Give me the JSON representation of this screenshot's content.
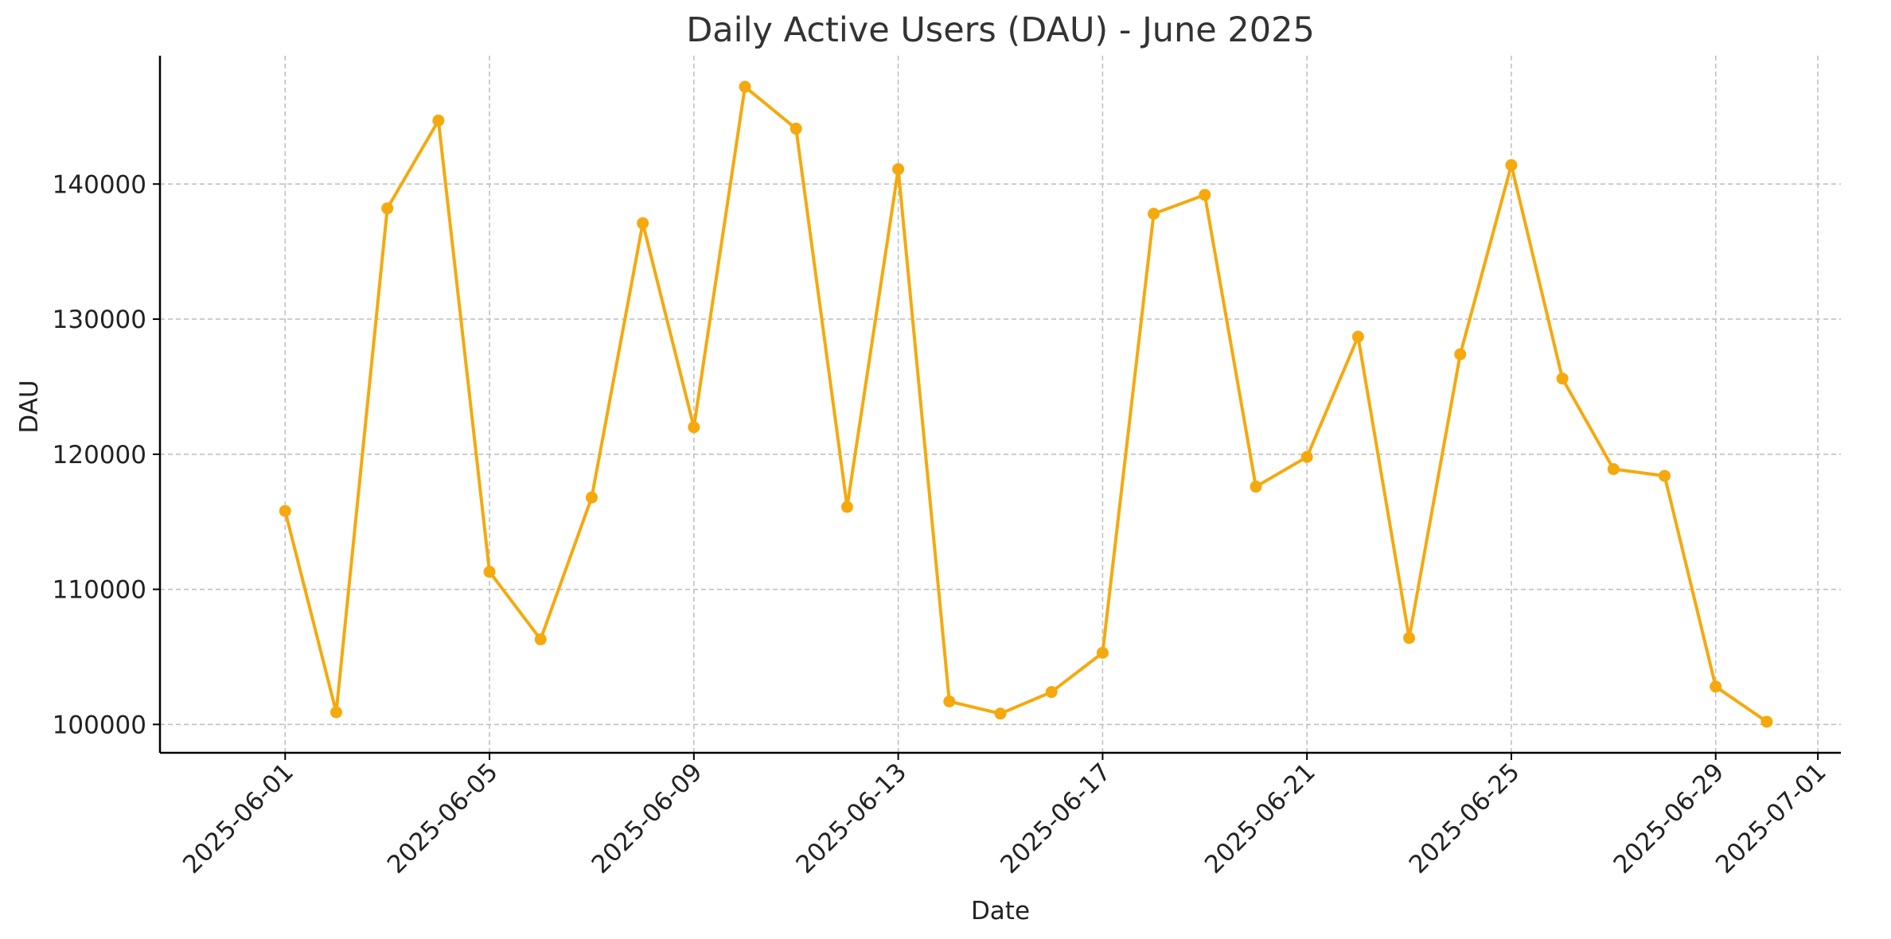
{
  "chart_data": {
    "type": "line",
    "title": "Daily Active Users (DAU) - June 2025",
    "xlabel": "Date",
    "ylabel": "DAU",
    "x": [
      "2025-06-01",
      "2025-06-02",
      "2025-06-03",
      "2025-06-04",
      "2025-06-05",
      "2025-06-06",
      "2025-06-07",
      "2025-06-08",
      "2025-06-09",
      "2025-06-10",
      "2025-06-11",
      "2025-06-12",
      "2025-06-13",
      "2025-06-14",
      "2025-06-15",
      "2025-06-16",
      "2025-06-17",
      "2025-06-18",
      "2025-06-19",
      "2025-06-20",
      "2025-06-21",
      "2025-06-22",
      "2025-06-23",
      "2025-06-24",
      "2025-06-25",
      "2025-06-26",
      "2025-06-27",
      "2025-06-28",
      "2025-06-29",
      "2025-06-30"
    ],
    "series": [
      {
        "values": [
          115800,
          100900,
          138200,
          144700,
          111300,
          106300,
          116800,
          137100,
          122000,
          147200,
          144100,
          116100,
          141100,
          101700,
          100800,
          102400,
          105300,
          137800,
          139200,
          117600,
          119800,
          128700,
          106400,
          127400,
          141400,
          125600,
          118900,
          118400,
          102800,
          100200
        ],
        "color": "#f5a90d"
      }
    ],
    "xticks": [
      "2025-06-01",
      "2025-06-05",
      "2025-06-09",
      "2025-06-13",
      "2025-06-17",
      "2025-06-21",
      "2025-06-25",
      "2025-06-29",
      "2025-07-01"
    ],
    "yticks": [
      100000,
      110000,
      120000,
      130000,
      140000
    ],
    "xlim": [
      "2025-05-29.55",
      "2025-07-01.45"
    ],
    "ylim": [
      97900,
      149500
    ],
    "grid": true,
    "legend": "none",
    "colors": {
      "line": "#f5a90d",
      "axis": "#000000",
      "grid": "#bdbdbd",
      "title": "#333333"
    }
  }
}
